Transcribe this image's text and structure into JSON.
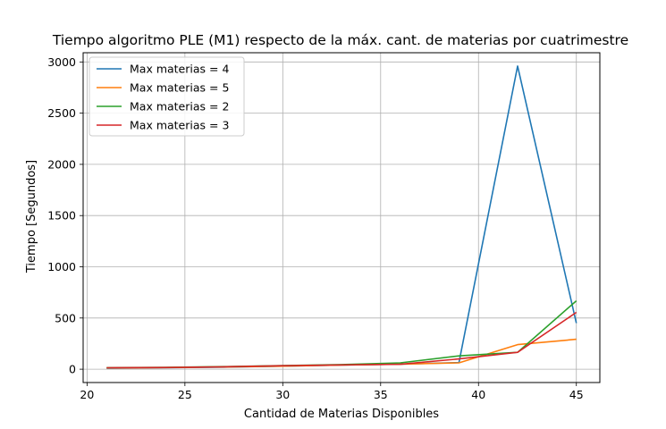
{
  "chart_data": {
    "type": "line",
    "title": "Tiempo algoritmo PLE (M1) respecto de la máx. cant. de materias por cuatrimestre",
    "xlabel": "Cantidad de Materias Disponibles",
    "ylabel": "Tiempo [Segundos]",
    "xlim": [
      19.8,
      46.2
    ],
    "ylim": [
      -130,
      3090
    ],
    "xticks": [
      20,
      25,
      30,
      35,
      40,
      45
    ],
    "yticks": [
      0,
      500,
      1000,
      1500,
      2000,
      2500,
      3000
    ],
    "grid": true,
    "legend_position": "top-left",
    "series": [
      {
        "name": "Max materias = 4",
        "color": "#1f77b4",
        "x": [
          21,
          24,
          27,
          30,
          33,
          36,
          39,
          42,
          45
        ],
        "y": [
          10,
          14,
          20,
          30,
          40,
          50,
          65,
          2960,
          450
        ]
      },
      {
        "name": "Max materias = 5",
        "color": "#ff7f0e",
        "x": [
          21,
          24,
          27,
          30,
          33,
          36,
          39,
          42,
          45
        ],
        "y": [
          12,
          16,
          22,
          30,
          40,
          50,
          62,
          240,
          292
        ]
      },
      {
        "name": "Max materias = 2",
        "color": "#2ca02c",
        "x": [
          21,
          24,
          27,
          30,
          33,
          36,
          39,
          42,
          45
        ],
        "y": [
          15,
          18,
          25,
          35,
          45,
          62,
          130,
          165,
          668
        ]
      },
      {
        "name": "Max materias = 3",
        "color": "#d62728",
        "x": [
          21,
          24,
          27,
          30,
          33,
          36,
          39,
          42,
          45
        ],
        "y": [
          14,
          17,
          24,
          34,
          42,
          48,
          100,
          165,
          555
        ]
      }
    ]
  }
}
